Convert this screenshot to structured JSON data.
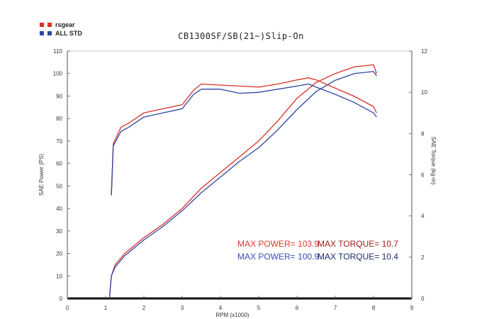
{
  "legend": [
    {
      "label": "rsgear",
      "color": "#d9302a"
    },
    {
      "label": "ALL STD",
      "color": "#2f46a0"
    }
  ],
  "chart_data": {
    "type": "line",
    "title": "CB1300SF/SB(21~)Slip-On",
    "xlabel": "RPM (x1000)",
    "ylabel_left": "SAE Power (PS)",
    "ylabel_right": "SAE Torque (kg-m)",
    "xlim": [
      0,
      9
    ],
    "ylim_left": [
      0,
      110
    ],
    "ylim_right": [
      0,
      12
    ],
    "x_ticks": [
      "0",
      "1",
      "2",
      "3",
      "4",
      "5",
      "6",
      "7",
      "8",
      "9"
    ],
    "y_left_ticks": [
      "0",
      "10",
      "20",
      "30",
      "40",
      "50",
      "60",
      "70",
      "80",
      "90",
      "100",
      "110"
    ],
    "y_right_ticks": [
      "0",
      "2",
      "4",
      "6",
      "8",
      "10",
      "12"
    ],
    "grid": false,
    "series": [
      {
        "name": "rsgear",
        "quantity": "power",
        "axis": "left",
        "color": "#d9302a",
        "points": [
          [
            1.1,
            0
          ],
          [
            1.15,
            10
          ],
          [
            1.25,
            15
          ],
          [
            1.5,
            20
          ],
          [
            2,
            27
          ],
          [
            2.5,
            33
          ],
          [
            3,
            40
          ],
          [
            3.5,
            49
          ],
          [
            4,
            56
          ],
          [
            4.5,
            63
          ],
          [
            5,
            70
          ],
          [
            5.5,
            79
          ],
          [
            6,
            89
          ],
          [
            6.5,
            96
          ],
          [
            7,
            100
          ],
          [
            7.5,
            103
          ],
          [
            8,
            103.9
          ],
          [
            8.08,
            100
          ]
        ]
      },
      {
        "name": "ALL STD",
        "quantity": "power",
        "axis": "left",
        "color": "#2f46a0",
        "points": [
          [
            1.1,
            0
          ],
          [
            1.15,
            10
          ],
          [
            1.25,
            14
          ],
          [
            1.5,
            19
          ],
          [
            2,
            26
          ],
          [
            2.5,
            32
          ],
          [
            3,
            39
          ],
          [
            3.5,
            47
          ],
          [
            4,
            54
          ],
          [
            4.5,
            61
          ],
          [
            5,
            67
          ],
          [
            5.5,
            75
          ],
          [
            6,
            84
          ],
          [
            6.5,
            92
          ],
          [
            7,
            97
          ],
          [
            7.5,
            100
          ],
          [
            8,
            100.9
          ],
          [
            8.08,
            99
          ]
        ]
      },
      {
        "name": "rsgear",
        "quantity": "torque",
        "axis": "right",
        "color": "#d9302a",
        "points": [
          [
            1.15,
            5
          ],
          [
            1.2,
            7.5
          ],
          [
            1.4,
            8.3
          ],
          [
            1.6,
            8.5
          ],
          [
            2,
            9.0
          ],
          [
            2.5,
            9.2
          ],
          [
            3,
            9.4
          ],
          [
            3.3,
            10.1
          ],
          [
            3.5,
            10.4
          ],
          [
            4,
            10.35
          ],
          [
            4.5,
            10.3
          ],
          [
            5,
            10.25
          ],
          [
            5.5,
            10.4
          ],
          [
            6,
            10.6
          ],
          [
            6.3,
            10.7
          ],
          [
            6.5,
            10.6
          ],
          [
            7,
            10.2
          ],
          [
            7.5,
            9.8
          ],
          [
            8,
            9.3
          ],
          [
            8.08,
            9.0
          ]
        ]
      },
      {
        "name": "ALL STD",
        "quantity": "torque",
        "axis": "right",
        "color": "#2f46a0",
        "points": [
          [
            1.15,
            5
          ],
          [
            1.2,
            7.4
          ],
          [
            1.4,
            8.1
          ],
          [
            1.6,
            8.3
          ],
          [
            2,
            8.8
          ],
          [
            2.5,
            9.0
          ],
          [
            3,
            9.2
          ],
          [
            3.3,
            9.9
          ],
          [
            3.5,
            10.15
          ],
          [
            4,
            10.15
          ],
          [
            4.5,
            9.95
          ],
          [
            5,
            10.0
          ],
          [
            5.5,
            10.15
          ],
          [
            6,
            10.3
          ],
          [
            6.3,
            10.4
          ],
          [
            6.5,
            10.25
          ],
          [
            7,
            9.9
          ],
          [
            7.5,
            9.5
          ],
          [
            8,
            9.0
          ],
          [
            8.08,
            8.8
          ]
        ]
      }
    ],
    "annotations": [
      {
        "text": "MAX POWER= 103.9",
        "color": "#e03a2c",
        "pos": "left",
        "row": 1
      },
      {
        "text": "MAX TORQUE= 10.7",
        "color": "#a01c1c",
        "pos": "right",
        "row": 1
      },
      {
        "text": "MAX POWER= 100.9",
        "color": "#3a4cc0",
        "pos": "left",
        "row": 2
      },
      {
        "text": "MAX TORQUE= 10.4",
        "color": "#1f2a6a",
        "pos": "right",
        "row": 2
      }
    ]
  }
}
